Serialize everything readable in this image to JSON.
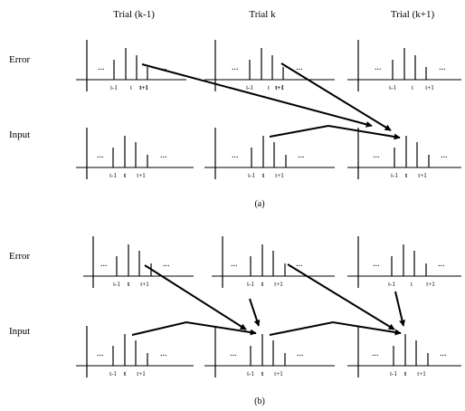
{
  "columns": [
    "Trial (k-1)",
    "Trial k",
    "Trial (k+1)"
  ],
  "rows": [
    "Error",
    "Input"
  ],
  "captions": [
    "(a)",
    "(b)"
  ],
  "ellipsis": "...",
  "tick_labels": {
    "error_trial_km1": [
      {
        "text": "t-1",
        "bold": false
      },
      {
        "text": "t",
        "bold": false
      },
      {
        "text": "t+1",
        "bold": true
      }
    ],
    "error_trial_k": [
      {
        "text": "t-1",
        "bold": false
      },
      {
        "text": "t",
        "bold": false
      },
      {
        "text": "t+1",
        "bold": true
      }
    ],
    "error_trial_kp1": [
      {
        "text": "t-1",
        "bold": false
      },
      {
        "text": "t",
        "bold": false
      },
      {
        "text": "t+1",
        "bold": false
      }
    ],
    "input_all": [
      {
        "text": "t-1",
        "bold": false
      },
      {
        "text": "t",
        "bold": true
      },
      {
        "text": "t+1",
        "bold": false
      }
    ],
    "error_b": [
      {
        "text": "t-1",
        "bold": false
      },
      {
        "text": "t",
        "bold": true
      },
      {
        "text": "t+1",
        "bold": false
      }
    ],
    "error_b_kp1": [
      {
        "text": "t-1",
        "bold": false
      },
      {
        "text": "t",
        "bold": false
      },
      {
        "text": "t+1",
        "bold": false
      }
    ],
    "input_b": [
      {
        "text": "t-1",
        "bold": false
      },
      {
        "text": "t",
        "bold": true
      },
      {
        "text": "t+1",
        "bold": false
      }
    ]
  }
}
